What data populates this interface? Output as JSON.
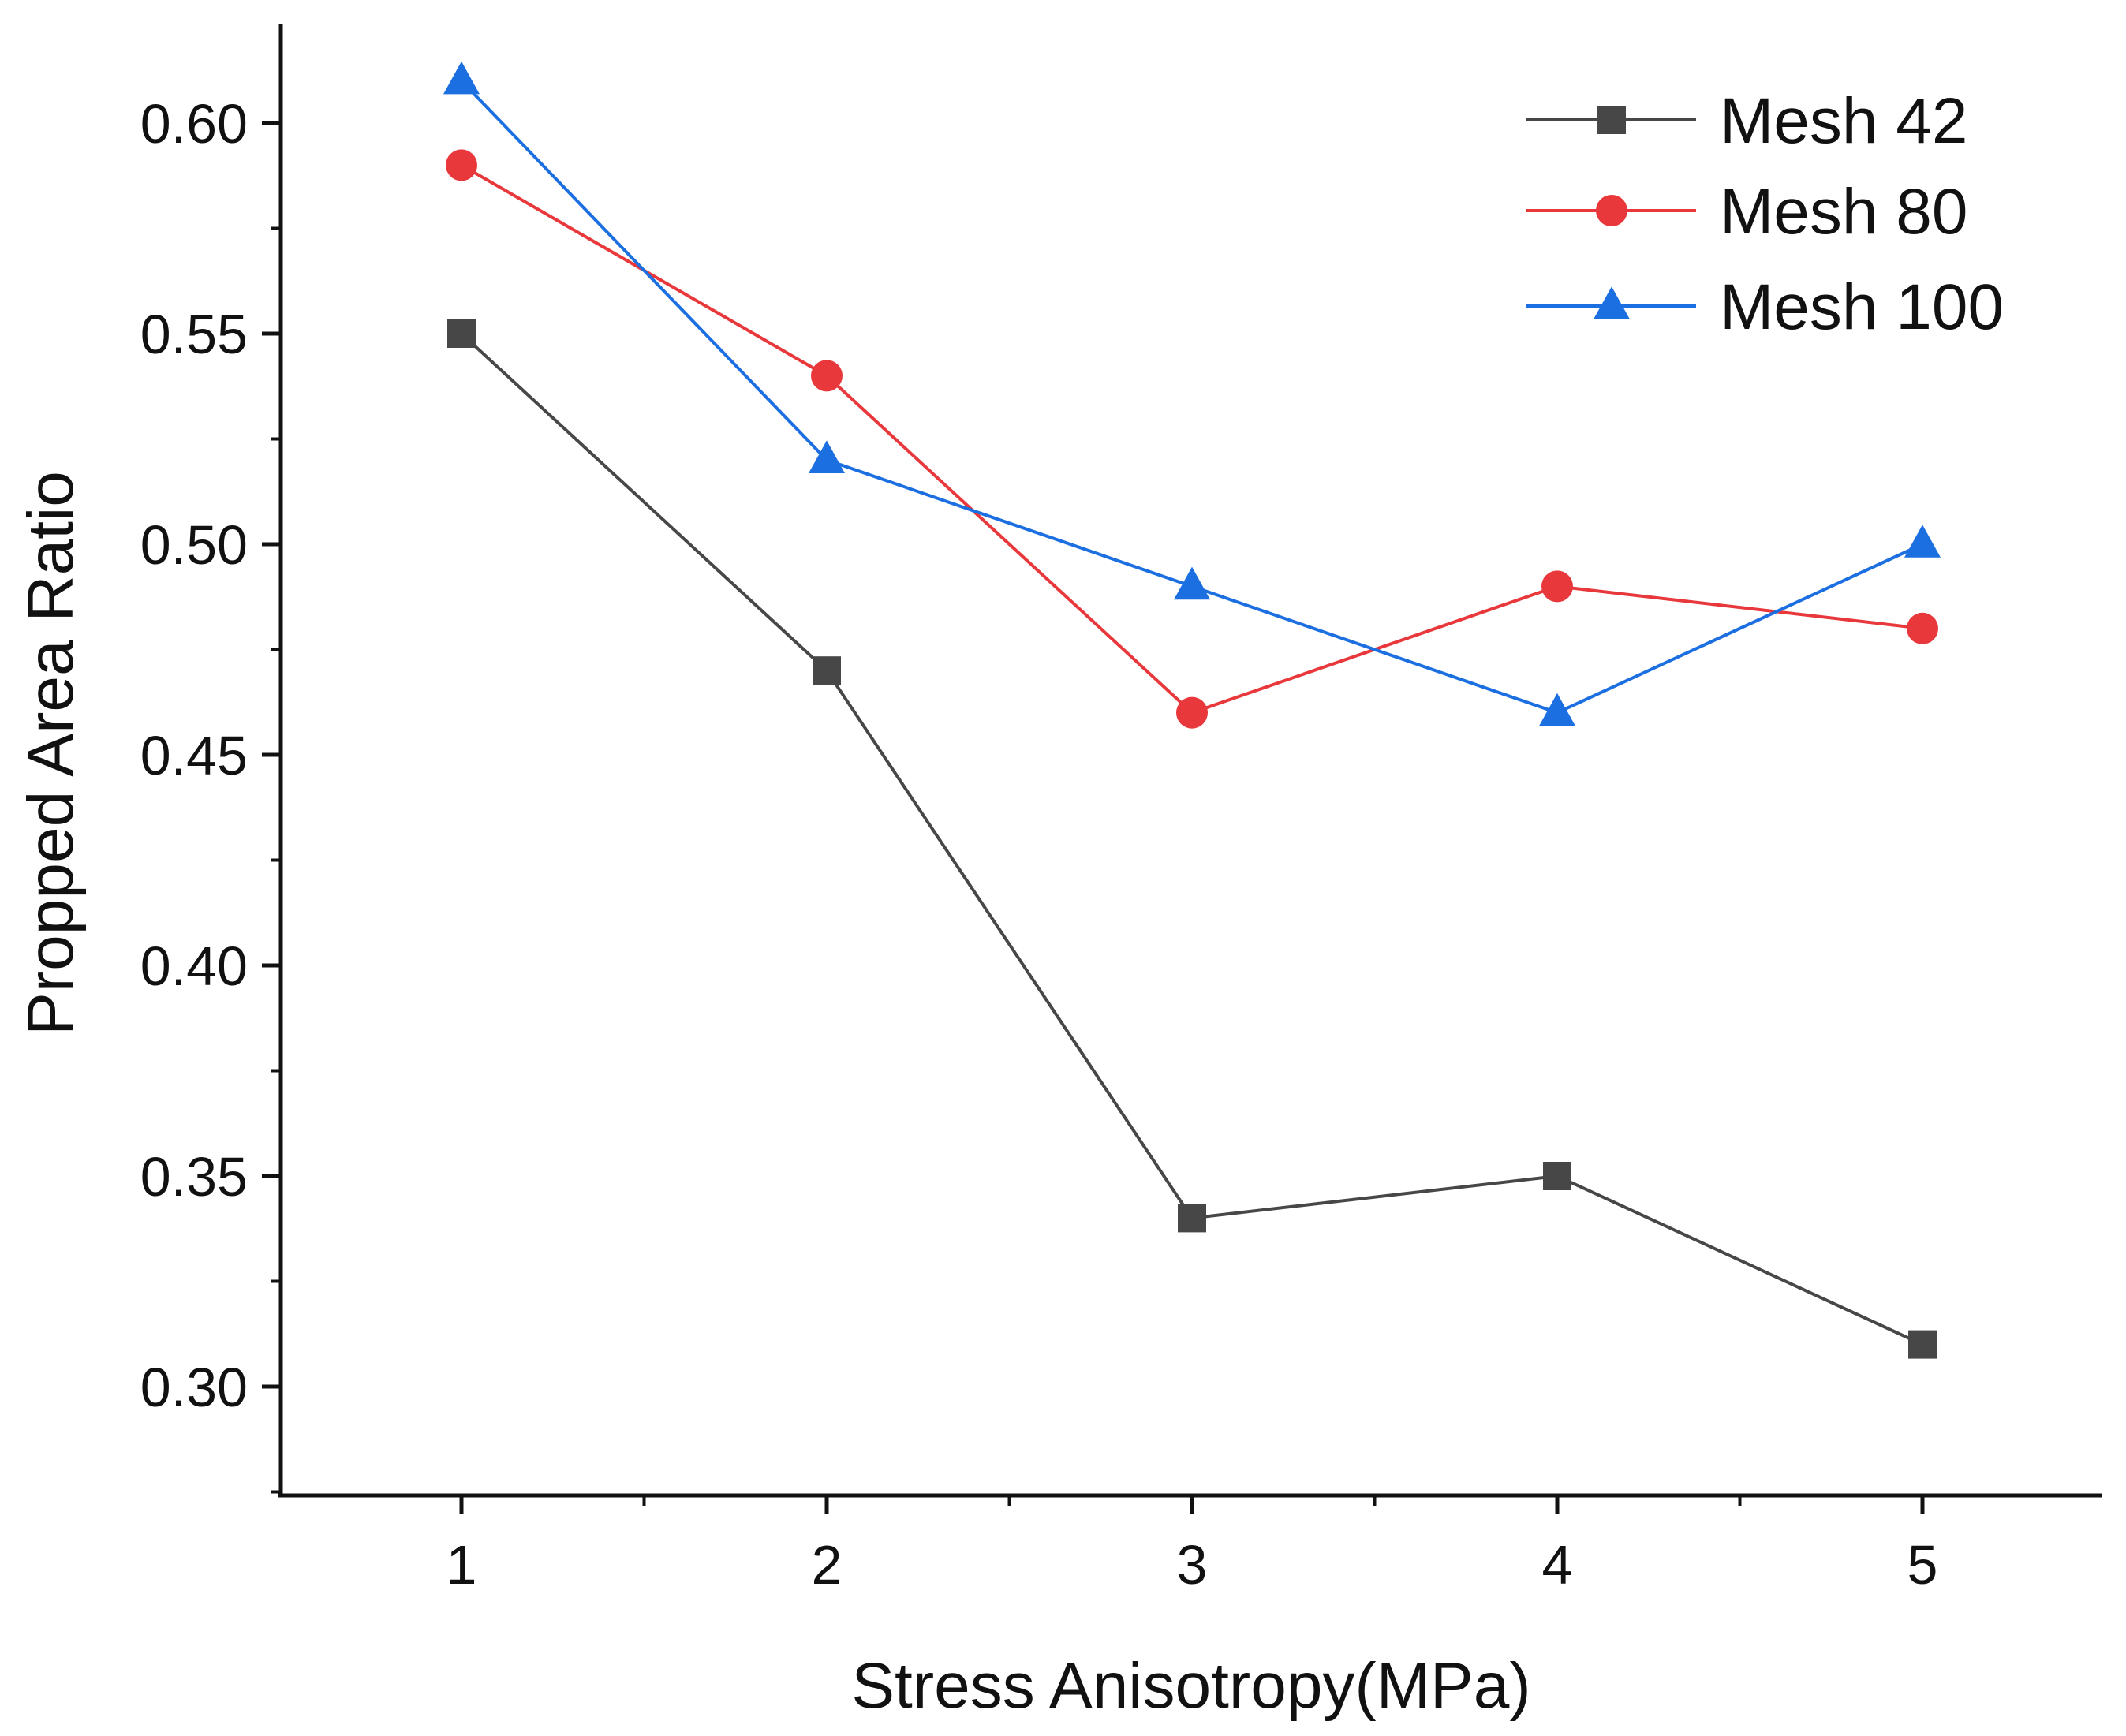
{
  "chart_data": {
    "type": "line",
    "title": "",
    "xlabel": "Stress Anisotropy(MPa)",
    "ylabel": "Propped Area Ratio",
    "x": [
      1,
      2,
      3,
      4,
      5
    ],
    "x_tick_labels": [
      "1",
      "2",
      "3",
      "4",
      "5"
    ],
    "y_tick_labels": [
      "0.30",
      "0.35",
      "0.40",
      "0.45",
      "0.50",
      "0.55",
      "0.60"
    ],
    "xlim": [
      0.5,
      5.5
    ],
    "ylim": [
      0.28,
      0.625
    ],
    "grid": false,
    "legend_position": "top-right",
    "series": [
      {
        "name": "Mesh 42",
        "marker": "square",
        "color": "#474747",
        "values": [
          0.55,
          0.47,
          0.34,
          0.35,
          0.31
        ]
      },
      {
        "name": "Mesh 80",
        "marker": "circle",
        "color": "#e8383b",
        "values": [
          0.59,
          0.54,
          0.46,
          0.49,
          0.48
        ]
      },
      {
        "name": "Mesh 100",
        "marker": "triangle",
        "color": "#1c6fe0",
        "values": [
          0.61,
          0.52,
          0.49,
          0.46,
          0.5
        ]
      }
    ]
  }
}
